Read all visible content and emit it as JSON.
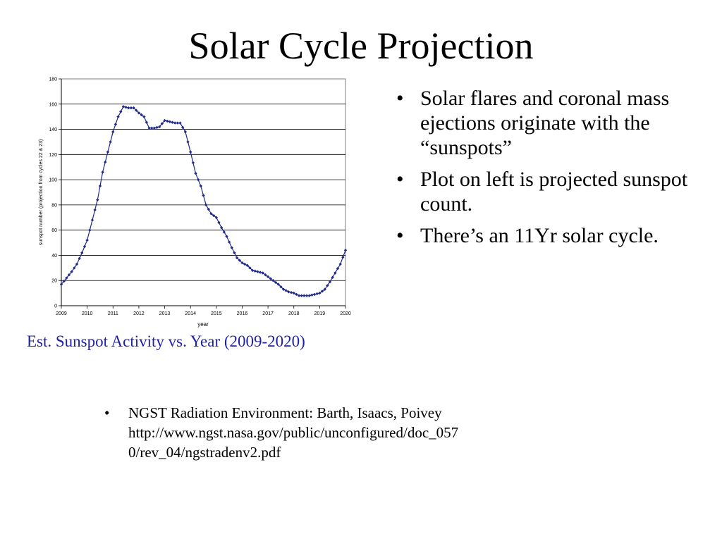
{
  "slide": {
    "title": "Solar Cycle Projection",
    "caption": "Est. Sunspot Activity vs. Year (2009-2020)",
    "bullets": [
      "Solar flares and coronal mass ejections originate with the “sunspots”",
      "Plot on left is projected sunspot count.",
      "There’s an 11Yr solar cycle."
    ],
    "reference": {
      "line1": "NGST Radiation Environment: Barth, Isaacs, Poivey",
      "line2": "http://www.ngst.nasa.gov/public/unconfigured/doc_057",
      "line3": "0/rev_04/ngstradenv2.pdf"
    }
  },
  "chart_data": {
    "type": "line",
    "xlabel": "year",
    "ylabel": "sunspot number (projection from cycles 22 & 23)",
    "xlim": [
      2009,
      2020
    ],
    "ylim": [
      0,
      180
    ],
    "xticks": [
      2009,
      2010,
      2011,
      2012,
      2013,
      2014,
      2015,
      2016,
      2017,
      2018,
      2019,
      2020
    ],
    "yticks": [
      0,
      20,
      40,
      60,
      80,
      100,
      120,
      140,
      160,
      180
    ],
    "grid": "horizontal",
    "series_color": "#1f2a8a",
    "x": [
      2009.0,
      2009.2,
      2009.4,
      2009.6,
      2009.8,
      2010.0,
      2010.2,
      2010.4,
      2010.6,
      2010.8,
      2011.0,
      2011.2,
      2011.4,
      2011.6,
      2011.8,
      2012.0,
      2012.2,
      2012.4,
      2012.6,
      2012.8,
      2013.0,
      2013.2,
      2013.4,
      2013.6,
      2013.8,
      2014.0,
      2014.2,
      2014.4,
      2014.6,
      2014.8,
      2015.0,
      2015.2,
      2015.4,
      2015.6,
      2015.8,
      2016.0,
      2016.2,
      2016.4,
      2016.6,
      2016.8,
      2017.0,
      2017.2,
      2017.4,
      2017.6,
      2017.8,
      2018.0,
      2018.2,
      2018.4,
      2018.6,
      2018.8,
      2019.0,
      2019.2,
      2019.4,
      2019.6,
      2019.8,
      2020.0
    ],
    "values": [
      17,
      22,
      27,
      33,
      42,
      52,
      68,
      84,
      106,
      122,
      138,
      150,
      158,
      157,
      157,
      153,
      150,
      141,
      141,
      142,
      147,
      146,
      145,
      145,
      138,
      122,
      105,
      95,
      80,
      73,
      70,
      62,
      55,
      46,
      38,
      34,
      32,
      28,
      27,
      26,
      23,
      20,
      17,
      13,
      11,
      10,
      8,
      8,
      8,
      9,
      10,
      13,
      19,
      26,
      33,
      44
    ]
  }
}
